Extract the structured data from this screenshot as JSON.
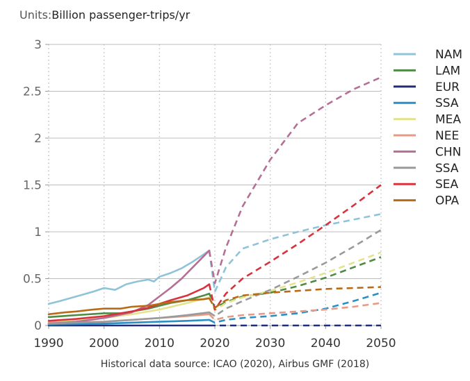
{
  "header": {
    "units_prefix": "Units:",
    "units_text": "Billion passenger-trips/yr"
  },
  "footer": {
    "source": "Historical data source: ICAO (2020), Airbus GMF (2018)"
  },
  "chart_data": {
    "type": "line",
    "title": "",
    "xlabel": "",
    "ylabel": "Billion passenger-trips/yr",
    "xlim": [
      1990,
      2050
    ],
    "ylim": [
      0,
      3
    ],
    "x_ticks": [
      1990,
      2000,
      2010,
      2020,
      2030,
      2040,
      2050
    ],
    "y_ticks": [
      0,
      0.5,
      1,
      1.5,
      2,
      2.5,
      3
    ],
    "y_tick_labels": [
      "0",
      "0.5",
      "1",
      "1.5",
      "2",
      "2.5",
      "3"
    ],
    "grid": {
      "x": "dotted vertical",
      "y": "solid horizontal"
    },
    "legend_position": "right",
    "historical_style": "solid (1990–2019)",
    "projection_style": "dashed (2019–2050)",
    "series": [
      {
        "name": "NAM",
        "color": "#8fc3d8",
        "historical": {
          "x": [
            1990,
            1992,
            1995,
            1998,
            2000,
            2002,
            2004,
            2006,
            2008,
            2009,
            2010,
            2012,
            2014,
            2016,
            2018,
            2019
          ],
          "y": [
            0.23,
            0.26,
            0.31,
            0.36,
            0.4,
            0.38,
            0.44,
            0.47,
            0.49,
            0.47,
            0.52,
            0.56,
            0.61,
            0.68,
            0.76,
            0.8
          ]
        },
        "projection": {
          "x": [
            2019,
            2020,
            2022,
            2025,
            2030,
            2035,
            2040,
            2045,
            2050
          ],
          "y": [
            0.8,
            0.36,
            0.62,
            0.82,
            0.92,
            1.0,
            1.07,
            1.13,
            1.19
          ]
        }
      },
      {
        "name": "LAM",
        "color": "#4e8c43",
        "historical": {
          "x": [
            1990,
            1995,
            2000,
            2003,
            2005,
            2008,
            2010,
            2012,
            2015,
            2018,
            2019
          ],
          "y": [
            0.09,
            0.11,
            0.13,
            0.13,
            0.15,
            0.18,
            0.21,
            0.24,
            0.27,
            0.32,
            0.34
          ]
        },
        "projection": {
          "x": [
            2019,
            2020,
            2022,
            2025,
            2030,
            2035,
            2040,
            2045,
            2050
          ],
          "y": [
            0.34,
            0.19,
            0.25,
            0.31,
            0.35,
            0.42,
            0.51,
            0.62,
            0.73
          ]
        }
      },
      {
        "name": "EUR",
        "color": "#1f2d7a",
        "historical": {
          "x": [
            1990,
            2000,
            2010,
            2019
          ],
          "y": [
            0.0,
            0.0,
            0.0,
            0.0
          ]
        },
        "projection": {
          "x": [
            2019,
            2050
          ],
          "y": [
            0.0,
            0.0
          ]
        }
      },
      {
        "name": "SSA",
        "color": "#2a8fc4",
        "historical": {
          "x": [
            1990,
            1995,
            2000,
            2005,
            2010,
            2015,
            2019
          ],
          "y": [
            0.01,
            0.015,
            0.02,
            0.03,
            0.04,
            0.05,
            0.06
          ]
        },
        "projection": {
          "x": [
            2019,
            2020,
            2022,
            2025,
            2030,
            2035,
            2040,
            2045,
            2050
          ],
          "y": [
            0.06,
            0.03,
            0.06,
            0.08,
            0.1,
            0.13,
            0.18,
            0.26,
            0.35
          ]
        }
      },
      {
        "name": "MEA",
        "color": "#e3e38d",
        "historical": {
          "x": [
            1990,
            1995,
            2000,
            2005,
            2010,
            2015,
            2019
          ],
          "y": [
            0.04,
            0.06,
            0.08,
            0.12,
            0.17,
            0.24,
            0.3
          ]
        },
        "projection": {
          "x": [
            2019,
            2020,
            2022,
            2025,
            2030,
            2035,
            2040,
            2045,
            2050
          ],
          "y": [
            0.3,
            0.16,
            0.24,
            0.3,
            0.37,
            0.46,
            0.56,
            0.67,
            0.78
          ]
        }
      },
      {
        "name": "NEE",
        "color": "#e79a86",
        "historical": {
          "x": [
            1990,
            1995,
            2000,
            2005,
            2010,
            2015,
            2019
          ],
          "y": [
            0.03,
            0.035,
            0.04,
            0.06,
            0.08,
            0.1,
            0.12
          ]
        },
        "projection": {
          "x": [
            2019,
            2020,
            2022,
            2025,
            2030,
            2035,
            2040,
            2045,
            2050
          ],
          "y": [
            0.12,
            0.06,
            0.09,
            0.11,
            0.13,
            0.15,
            0.17,
            0.2,
            0.24
          ]
        }
      },
      {
        "name": "CHN",
        "color": "#b56e94",
        "historical": {
          "x": [
            1990,
            1995,
            2000,
            2005,
            2008,
            2010,
            2012,
            2014,
            2016,
            2018,
            2019
          ],
          "y": [
            0.02,
            0.04,
            0.08,
            0.14,
            0.22,
            0.31,
            0.4,
            0.5,
            0.62,
            0.74,
            0.8
          ]
        },
        "projection": {
          "x": [
            2019,
            2020,
            2022,
            2025,
            2030,
            2035,
            2040,
            2045,
            2050
          ],
          "y": [
            0.8,
            0.45,
            0.83,
            1.27,
            1.77,
            2.16,
            2.35,
            2.52,
            2.65
          ]
        }
      },
      {
        "name": "SSA",
        "color": "#9a9a9a",
        "historical": {
          "x": [
            1990,
            1995,
            2000,
            2005,
            2010,
            2015,
            2019
          ],
          "y": [
            0.02,
            0.03,
            0.04,
            0.06,
            0.08,
            0.11,
            0.14
          ]
        },
        "projection": {
          "x": [
            2019,
            2020,
            2022,
            2025,
            2030,
            2035,
            2040,
            2045,
            2050
          ],
          "y": [
            0.14,
            0.1,
            0.18,
            0.26,
            0.38,
            0.52,
            0.67,
            0.84,
            1.02
          ]
        }
      },
      {
        "name": "SEA",
        "color": "#d7323d",
        "historical": {
          "x": [
            1990,
            1995,
            2000,
            2005,
            2008,
            2010,
            2012,
            2015,
            2018,
            2019
          ],
          "y": [
            0.05,
            0.07,
            0.1,
            0.15,
            0.19,
            0.23,
            0.27,
            0.32,
            0.4,
            0.44
          ]
        },
        "projection": {
          "x": [
            2019,
            2020,
            2022,
            2025,
            2030,
            2035,
            2040,
            2045,
            2050
          ],
          "y": [
            0.44,
            0.17,
            0.34,
            0.5,
            0.68,
            0.87,
            1.07,
            1.28,
            1.5
          ]
        }
      },
      {
        "name": "OPA",
        "color": "#b96a14",
        "historical": {
          "x": [
            1990,
            1993,
            1995,
            1998,
            2000,
            2003,
            2005,
            2008,
            2010,
            2012,
            2015,
            2018,
            2019
          ],
          "y": [
            0.12,
            0.14,
            0.15,
            0.17,
            0.18,
            0.18,
            0.2,
            0.21,
            0.23,
            0.25,
            0.27,
            0.28,
            0.29
          ]
        },
        "projection": {
          "x": [
            2019,
            2020,
            2022,
            2025,
            2030,
            2035,
            2040,
            2045,
            2050
          ],
          "y": [
            0.29,
            0.19,
            0.27,
            0.32,
            0.35,
            0.37,
            0.39,
            0.4,
            0.41
          ]
        }
      }
    ]
  }
}
